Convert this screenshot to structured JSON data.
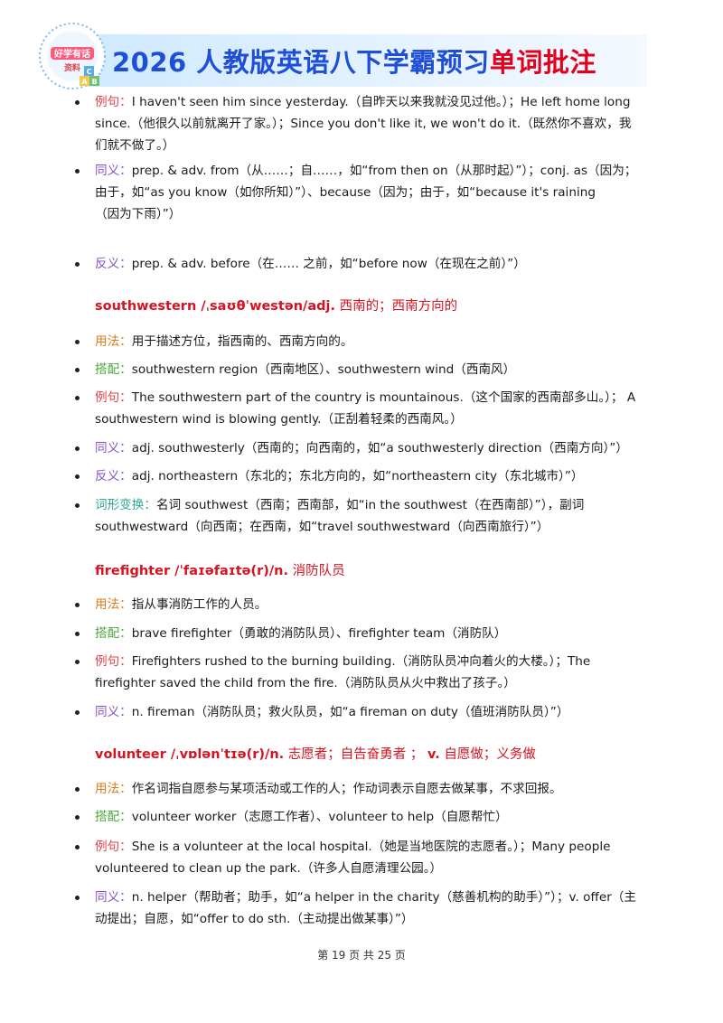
{
  "header": {
    "logo_text_1": "好学有话",
    "logo_text_2": "资料",
    "title_part1": "2026 人教版英语八下学霸预习",
    "title_part2": "单词批注"
  },
  "since_block": {
    "example": {
      "label": "例句：",
      "text": "I haven't seen him since yesterday.（自昨天以来我就没见过他。）；He left home long since.（他很久以前就离开了家。）；Since you don't like it, we won't do it.（既然你不喜欢，我们就不做了。）"
    },
    "synonym": {
      "label": "同义：",
      "text": "prep. & adv. from（从……；自……，如“from then on（从那时起）”）；conj. as（因为；由于，如“as you know（如你所知）”）、because（因为；由于，如“because it's raining",
      "text2": "（因为下雨）”）"
    },
    "antonym": {
      "label": "反义：",
      "text": "prep. & adv. before（在…… 之前，如“before now（在现在之前）”）"
    }
  },
  "southwestern": {
    "word": "southwestern /ˌsaʊθˈwestən/adj.",
    "meaning": "西南的；西南方向的",
    "usage": {
      "label": "用法：",
      "text": "用于描述方位，指西南的、西南方向的。"
    },
    "collocation": {
      "label": "搭配：",
      "text": "southwestern region（西南地区）、southwestern wind（西南风）"
    },
    "example": {
      "label": "例句：",
      "text": "The southwestern part of the country is mountainous.（这个国家的西南部多山。）；  A southwestern wind is blowing gently.（正刮着轻柔的西南风。）"
    },
    "synonym": {
      "label": "同义：",
      "text": "adj. southwesterly（西南的；向西南的，如“a southwesterly direction（西南方向）”）"
    },
    "antonym": {
      "label": "反义：",
      "text": "adj. northeastern（东北的；东北方向的，如“northeastern city（东北城市）”）"
    },
    "forms": {
      "label": "词形变换：",
      "text": "名词 southwest（西南；西南部，如“in the southwest（在西南部）”），副词 southwestward（向西南；在西南，如“travel southwestward（向西南旅行）”）"
    }
  },
  "firefighter": {
    "word": "firefighter /ˈfaɪəfaɪtə(r)/n.",
    "meaning": "消防队员",
    "usage": {
      "label": "用法：",
      "text": "指从事消防工作的人员。"
    },
    "collocation": {
      "label": "搭配：",
      "text": "brave firefighter（勇敢的消防队员）、firefighter team（消防队）"
    },
    "example": {
      "label": "例句：",
      "text": "Firefighters rushed to the burning building.（消防队员冲向着火的大楼。）；The firefighter saved the child from the fire.（消防队员从火中救出了孩子。）"
    },
    "synonym": {
      "label": "同义：",
      "text": "n. fireman（消防队员；救火队员，如“a fireman on duty（值班消防队员）”）"
    }
  },
  "volunteer": {
    "word": "volunteer /ˌvɒlənˈtɪə(r)/n.",
    "meaning": "志愿者；自告奋勇者 ；",
    "word2": "v.",
    "meaning2": "自愿做；义务做",
    "usage": {
      "label": "用法：",
      "text": "作名词指自愿参与某项活动或工作的人；作动词表示自愿去做某事，不求回报。"
    },
    "collocation": {
      "label": "搭配：",
      "text": "volunteer worker（志愿工作者）、volunteer to help（自愿帮忙）"
    },
    "example": {
      "label": "例句：",
      "text": "She is a volunteer at the local hospital.（她是当地医院的志愿者。）；Many people volunteered to clean up the park.（许多人自愿清理公园。）"
    },
    "synonym": {
      "label": "同义：",
      "text": "n. helper（帮助者；助手，如“a helper in the charity（慈善机构的助手）”）；v. offer（主动提出；自愿，如“offer to do sth.（主动提出做某事）”）"
    }
  },
  "footer": {
    "page": "第 19 页 共 25 页"
  },
  "colors": {
    "usage": "#e07b1a",
    "collocation": "#4aa53a",
    "example": "#e0404a",
    "synonym": "#8a52c9",
    "antonym": "#8a52c9",
    "forms": "#2fa89a",
    "headword": "#d8121f"
  }
}
